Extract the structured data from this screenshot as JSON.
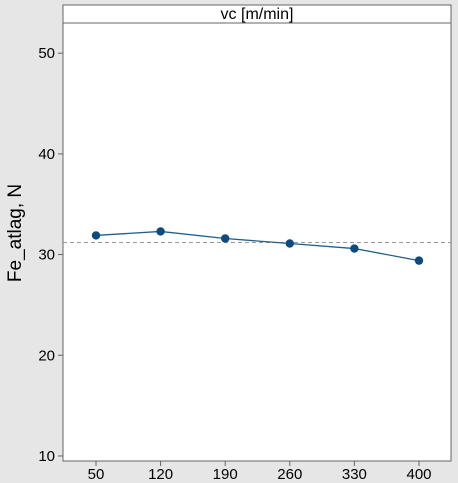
{
  "chart_data": {
    "type": "line",
    "panel_title": "vc [m/min]",
    "xlabel": "",
    "ylabel": "Fe_atlag, N",
    "categories": [
      "50",
      "120",
      "190",
      "260",
      "330",
      "400"
    ],
    "series": [
      {
        "values": [
          31.9,
          32.3,
          31.6,
          31.1,
          30.6,
          29.4
        ]
      }
    ],
    "reference_line": 31.2,
    "ylim": [
      9.5,
      53
    ],
    "yticks": [
      "10",
      "20",
      "30",
      "40",
      "50"
    ],
    "grid": false,
    "colors": {
      "line": "#1f5f8b",
      "marker": "#0d4a80",
      "reference": "#999999",
      "panel": "#ffffff",
      "outer_background": "#e6e6e6"
    }
  }
}
